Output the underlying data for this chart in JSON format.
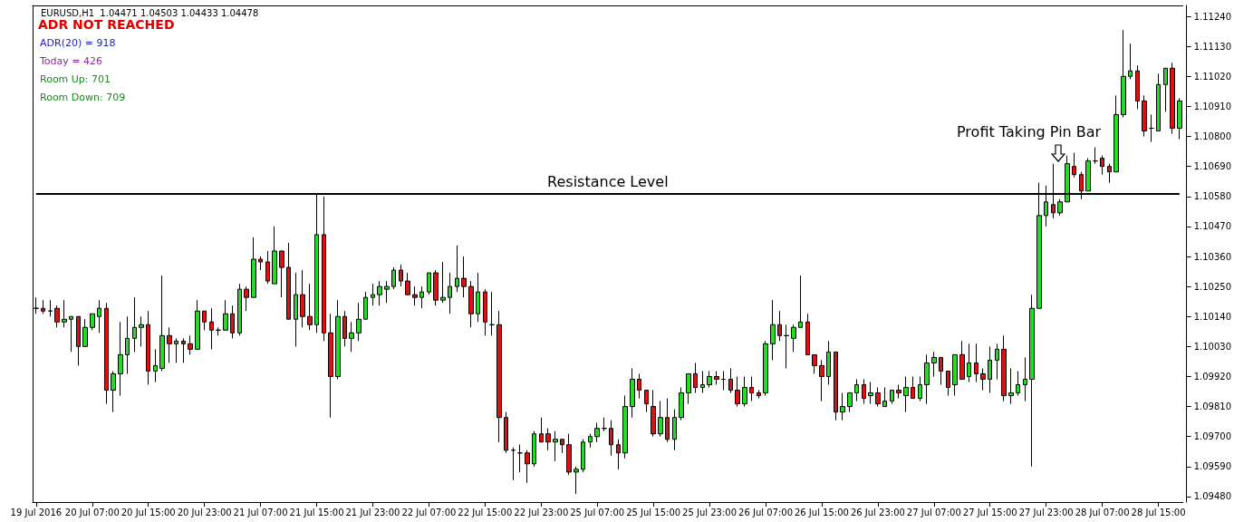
{
  "chart_data": {
    "type": "candlestick",
    "title": "EURUSD,H1  1.04471 1.04503 1.04433 1.04478",
    "annotations": [
      "ADR NOT REACHED",
      "ADR(20) = 918",
      "Today = 426",
      "Room Up: 701",
      "Room Down: 709",
      "Profit Taking Pin Bar"
    ],
    "categories": [
      "19 Jul 2016",
      null,
      null,
      null,
      null,
      null,
      null,
      null,
      "20 Jul 07:00",
      null,
      null,
      null,
      null,
      null,
      null,
      null,
      "20 Jul 15:00",
      null,
      null,
      null,
      null,
      null,
      null,
      null,
      "20 Jul 23:00",
      null,
      null,
      null,
      null,
      null,
      null,
      null,
      "21 Jul 07:00",
      null,
      null,
      null,
      null,
      null,
      null,
      null,
      "21 Jul 15:00",
      null,
      null,
      null,
      null,
      null,
      null,
      null,
      "21 Jul 23:00",
      null,
      null,
      null,
      null,
      null,
      null,
      null,
      "22 Jul 07:00",
      null,
      null,
      null,
      null,
      null,
      null,
      null,
      "22 Jul 15:00",
      null,
      null,
      null,
      null,
      null,
      null,
      null,
      "22 Jul 23:00",
      null,
      null,
      null,
      null,
      null,
      null,
      null,
      "25 Jul 07:00",
      null,
      null,
      null,
      null,
      null,
      null,
      null,
      "25 Jul 15:00",
      null,
      null,
      null,
      null,
      null,
      null,
      null,
      "25 Jul 23:00",
      null,
      null,
      null,
      null,
      null,
      null,
      null,
      "26 Jul 07:00",
      null,
      null,
      null,
      null,
      null,
      null,
      null,
      "26 Jul 15:00",
      null,
      null,
      null,
      null,
      null,
      null,
      null,
      "26 Jul 23:00",
      null,
      null,
      null,
      null,
      null,
      null,
      null,
      "27 Jul 07:00",
      null,
      null,
      null,
      null,
      null,
      null,
      null,
      "27 Jul 15:00",
      null,
      null,
      null,
      null,
      null,
      null,
      null,
      "27 Jul 23:00",
      null,
      null,
      null,
      null,
      null,
      null,
      null,
      "28 Jul 07:00",
      null,
      null,
      null,
      null,
      null,
      null,
      null,
      "28 Jul 15:00",
      null,
      null,
      null
    ],
    "ohlc": [
      [
        1.1017,
        1.1021,
        1.1015,
        1.1017
      ],
      [
        1.1017,
        1.102,
        1.1015,
        1.1016
      ],
      [
        1.1016,
        1.102,
        1.1014,
        1.1016
      ],
      [
        1.1017,
        1.1018,
        1.101,
        1.1012
      ],
      [
        1.1012,
        1.102,
        1.101,
        1.1013
      ],
      [
        1.1013,
        1.1014,
        1.1001,
        1.1014
      ],
      [
        1.1014,
        1.1014,
        1.0996,
        1.1003
      ],
      [
        1.1003,
        1.1013,
        1.1003,
        1.101
      ],
      [
        1.101,
        1.1015,
        1.1009,
        1.1015
      ],
      [
        1.1014,
        1.102,
        1.1008,
        1.1017
      ],
      [
        1.1017,
        1.1019,
        1.0982,
        1.0987
      ],
      [
        1.0987,
        1.0994,
        1.0979,
        1.0993
      ],
      [
        1.0993,
        1.1012,
        1.0985,
        1.1
      ],
      [
        1.1,
        1.1014,
        1.0993,
        1.1006
      ],
      [
        1.1006,
        1.1021,
        1.1001,
        1.101
      ],
      [
        1.101,
        1.1014,
        1.1003,
        1.1011
      ],
      [
        1.1011,
        1.1016,
        1.0989,
        1.0994
      ],
      [
        1.0994,
        1.1002,
        1.099,
        1.0996
      ],
      [
        1.0995,
        1.1029,
        1.0994,
        1.1007
      ],
      [
        1.1007,
        1.101,
        1.0997,
        1.1004
      ],
      [
        1.1004,
        1.1006,
        1.0997,
        1.1005
      ],
      [
        1.1005,
        1.1006,
        1.0997,
        1.1004
      ],
      [
        1.1004,
        1.1007,
        1.1,
        1.1002
      ],
      [
        1.1002,
        1.102,
        1.1002,
        1.1016
      ],
      [
        1.1016,
        1.1016,
        1.1009,
        1.1012
      ],
      [
        1.1012,
        1.1017,
        1.1002,
        1.1009
      ],
      [
        1.1009,
        1.101,
        1.1007,
        1.1009
      ],
      [
        1.1009,
        1.102,
        1.1009,
        1.1015
      ],
      [
        1.1015,
        1.1018,
        1.1006,
        1.1008
      ],
      [
        1.1008,
        1.1026,
        1.1007,
        1.1024
      ],
      [
        1.1024,
        1.1025,
        1.1016,
        1.1021
      ],
      [
        1.1021,
        1.1043,
        1.1021,
        1.1035
      ],
      [
        1.1035,
        1.1036,
        1.1031,
        1.1034
      ],
      [
        1.1034,
        1.1038,
        1.1026,
        1.1027
      ],
      [
        1.1026,
        1.1047,
        1.1026,
        1.1038
      ],
      [
        1.1038,
        1.1038,
        1.1021,
        1.1032
      ],
      [
        1.1032,
        1.1041,
        1.1013,
        1.1013
      ],
      [
        1.1013,
        1.103,
        1.1003,
        1.1022
      ],
      [
        1.1022,
        1.1031,
        1.101,
        1.1014
      ],
      [
        1.1014,
        1.1026,
        1.1009,
        1.1011
      ],
      [
        1.1011,
        1.1059,
        1.1008,
        1.1044
      ],
      [
        1.1044,
        1.1058,
        1.1005,
        1.1008
      ],
      [
        1.1008,
        1.1015,
        1.0977,
        1.0992
      ],
      [
        1.0992,
        1.102,
        1.0991,
        1.1014
      ],
      [
        1.1014,
        1.1016,
        1.1003,
        1.1006
      ],
      [
        1.1006,
        1.1012,
        1.1001,
        1.1008
      ],
      [
        1.1008,
        1.1019,
        1.1005,
        1.1013
      ],
      [
        1.1013,
        1.1023,
        1.1013,
        1.1021
      ],
      [
        1.1021,
        1.1026,
        1.1018,
        1.1022
      ],
      [
        1.1022,
        1.1027,
        1.1018,
        1.1025
      ],
      [
        1.1024,
        1.1027,
        1.1019,
        1.1025
      ],
      [
        1.1025,
        1.1032,
        1.1024,
        1.1031
      ],
      [
        1.1031,
        1.1033,
        1.1025,
        1.1027
      ],
      [
        1.1027,
        1.103,
        1.1022,
        1.1022
      ],
      [
        1.1022,
        1.1025,
        1.1018,
        1.1021
      ],
      [
        1.1021,
        1.1025,
        1.1017,
        1.1023
      ],
      [
        1.1023,
        1.103,
        1.1022,
        1.103
      ],
      [
        1.103,
        1.1031,
        1.1018,
        1.102
      ],
      [
        1.102,
        1.1034,
        1.1019,
        1.1021
      ],
      [
        1.1021,
        1.103,
        1.1015,
        1.1025
      ],
      [
        1.1025,
        1.104,
        1.1023,
        1.1028
      ],
      [
        1.1028,
        1.1036,
        1.1021,
        1.1025
      ],
      [
        1.1025,
        1.1027,
        1.101,
        1.1015
      ],
      [
        1.1015,
        1.103,
        1.1012,
        1.1023
      ],
      [
        1.1023,
        1.1024,
        1.1007,
        1.1012
      ],
      [
        1.1011,
        1.1023,
        1.1007,
        1.1011
      ],
      [
        1.1011,
        1.1016,
        1.0968,
        1.0977
      ],
      [
        1.0977,
        1.0979,
        1.0964,
        1.0965
      ],
      [
        1.0965,
        1.0966,
        1.0954,
        1.0965
      ],
      [
        1.0964,
        1.0967,
        1.0957,
        1.0964
      ],
      [
        1.0964,
        1.0965,
        1.0953,
        1.096
      ],
      [
        1.096,
        1.0972,
        1.0959,
        1.0971
      ],
      [
        1.0971,
        1.0977,
        1.0968,
        1.0968
      ],
      [
        1.0971,
        1.0973,
        1.0965,
        1.0968
      ],
      [
        1.0968,
        1.0972,
        1.0961,
        1.0969
      ],
      [
        1.0969,
        1.0969,
        1.0964,
        1.0967
      ],
      [
        1.0967,
        1.0971,
        1.0956,
        1.0957
      ],
      [
        1.0957,
        1.0959,
        1.0949,
        1.0958
      ],
      [
        1.0958,
        1.0969,
        1.0957,
        1.0968
      ],
      [
        1.0968,
        1.0971,
        1.0966,
        1.097
      ],
      [
        1.097,
        1.0975,
        1.0968,
        1.0973
      ],
      [
        1.0973,
        1.0977,
        1.0972,
        1.0973
      ],
      [
        1.0973,
        1.0976,
        1.0963,
        1.0967
      ],
      [
        1.0967,
        1.0969,
        1.0958,
        1.0964
      ],
      [
        1.0964,
        1.0985,
        1.0962,
        1.0981
      ],
      [
        1.0981,
        1.0995,
        1.0977,
        1.0991
      ],
      [
        1.0991,
        1.0993,
        1.0984,
        1.0987
      ],
      [
        1.0987,
        1.0987,
        1.0979,
        1.0982
      ],
      [
        1.0981,
        1.0987,
        1.097,
        1.0971
      ],
      [
        1.0971,
        1.0983,
        1.097,
        1.0977
      ],
      [
        1.0977,
        1.0984,
        1.0968,
        1.0969
      ],
      [
        1.0969,
        1.098,
        1.0965,
        1.0977
      ],
      [
        1.0977,
        1.0988,
        1.0976,
        1.0986
      ],
      [
        1.0986,
        1.0993,
        1.0982,
        1.0993
      ],
      [
        1.0993,
        1.0997,
        1.0986,
        1.0988
      ],
      [
        1.0988,
        1.0994,
        1.0986,
        1.0989
      ],
      [
        1.0989,
        1.0994,
        1.0988,
        1.0992
      ],
      [
        1.0992,
        1.0994,
        1.0989,
        1.0991
      ],
      [
        1.0991,
        1.0994,
        1.0987,
        1.0991
      ],
      [
        1.0991,
        1.0995,
        1.0986,
        1.0987
      ],
      [
        1.0987,
        1.0992,
        1.0981,
        1.0982
      ],
      [
        1.0982,
        1.0992,
        1.0981,
        1.0988
      ],
      [
        1.0988,
        1.0992,
        1.0983,
        1.0986
      ],
      [
        1.0986,
        1.0987,
        1.0984,
        1.0985
      ],
      [
        1.0986,
        1.1005,
        1.0985,
        1.1004
      ],
      [
        1.1004,
        1.102,
        1.0998,
        1.1011
      ],
      [
        1.1011,
        1.1016,
        1.1005,
        1.1007
      ],
      [
        1.1007,
        1.1011,
        1.0995,
        1.1007
      ],
      [
        1.1006,
        1.1011,
        1.1001,
        1.101
      ],
      [
        1.101,
        1.1029,
        1.101,
        1.1012
      ],
      [
        1.1012,
        1.1015,
        1.1,
        1.1
      ],
      [
        1.1,
        1.1,
        1.0993,
        1.0996
      ],
      [
        1.0996,
        1.0998,
        1.0983,
        1.0992
      ],
      [
        1.0992,
        1.1005,
        1.0989,
        1.1001
      ],
      [
        1.1001,
        1.1001,
        1.0976,
        1.0979
      ],
      [
        1.0979,
        1.0986,
        1.0976,
        1.0981
      ],
      [
        1.0981,
        1.0986,
        1.0979,
        1.0986
      ],
      [
        1.0986,
        1.0991,
        1.0983,
        1.0989
      ],
      [
        1.0989,
        1.0991,
        1.0982,
        1.0984
      ],
      [
        1.0985,
        1.099,
        1.0982,
        1.0986
      ],
      [
        1.0986,
        1.0988,
        1.0981,
        1.0982
      ],
      [
        1.0981,
        1.0988,
        1.0981,
        1.0983
      ],
      [
        1.0983,
        1.0987,
        1.0982,
        1.0987
      ],
      [
        1.0987,
        1.0989,
        1.0984,
        1.0986
      ],
      [
        1.0985,
        1.0992,
        1.0979,
        1.0988
      ],
      [
        1.0988,
        1.0992,
        1.0984,
        1.0984
      ],
      [
        1.0984,
        1.0992,
        1.0983,
        1.0989
      ],
      [
        1.0989,
        1.1,
        1.0982,
        1.0997
      ],
      [
        1.0997,
        1.1001,
        1.0992,
        1.0999
      ],
      [
        1.0999,
        1.0999,
        1.0989,
        1.0994
      ],
      [
        1.0994,
        1.0994,
        1.0985,
        1.0988
      ],
      [
        1.0989,
        1.1,
        1.0985,
        1.1
      ],
      [
        1.1,
        1.1005,
        1.0991,
        1.0991
      ],
      [
        1.0992,
        1.1004,
        1.099,
        1.0997
      ],
      [
        1.0997,
        1.1004,
        1.099,
        1.0993
      ],
      [
        1.0993,
        1.0995,
        1.0987,
        1.0991
      ],
      [
        1.0991,
        1.1003,
        1.0986,
        1.0998
      ],
      [
        1.0998,
        1.1004,
        1.0991,
        1.1002
      ],
      [
        1.1002,
        1.1007,
        1.0983,
        1.0985
      ],
      [
        1.0985,
        1.0995,
        1.0982,
        1.0986
      ],
      [
        1.0986,
        1.0994,
        1.0985,
        1.0989
      ],
      [
        1.0989,
        1.0999,
        1.0983,
        1.0991
      ],
      [
        1.0991,
        1.1022,
        1.0959,
        1.1017
      ],
      [
        1.1017,
        1.1063,
        1.1017,
        1.1051
      ],
      [
        1.1051,
        1.1062,
        1.1047,
        1.1056
      ],
      [
        1.1055,
        1.107,
        1.105,
        1.1052
      ],
      [
        1.1052,
        1.1057,
        1.1051,
        1.1056
      ],
      [
        1.1056,
        1.1073,
        1.1056,
        1.107
      ],
      [
        1.1069,
        1.1074,
        1.1065,
        1.1066
      ],
      [
        1.1066,
        1.1067,
        1.1057,
        1.106
      ],
      [
        1.106,
        1.1072,
        1.106,
        1.1071
      ],
      [
        1.1071,
        1.1076,
        1.107,
        1.1071
      ],
      [
        1.1072,
        1.1073,
        1.1066,
        1.1069
      ],
      [
        1.1069,
        1.107,
        1.1063,
        1.1067
      ],
      [
        1.1067,
        1.1095,
        1.1067,
        1.1088
      ],
      [
        1.1088,
        1.1119,
        1.1087,
        1.1102
      ],
      [
        1.1102,
        1.1114,
        1.1101,
        1.1104
      ],
      [
        1.1104,
        1.1106,
        1.109,
        1.1093
      ],
      [
        1.1093,
        1.1095,
        1.108,
        1.1082
      ],
      [
        1.1083,
        1.1088,
        1.1078,
        1.1083
      ],
      [
        1.1082,
        1.1103,
        1.1082,
        1.1099
      ],
      [
        1.1099,
        1.1105,
        1.1089,
        1.1105
      ],
      [
        1.1105,
        1.1107,
        1.1081,
        1.1083
      ],
      [
        1.1083,
        1.1094,
        1.1079,
        1.1093
      ]
    ],
    "ylim": [
      1.0946,
      1.1128
    ],
    "yticks": [
      {
        "value": 1.0948,
        "label": "1.09480"
      },
      {
        "value": 1.0959,
        "label": "1.09590"
      },
      {
        "value": 1.097,
        "label": "1.09700"
      },
      {
        "value": 1.0981,
        "label": "1.09810"
      },
      {
        "value": 1.0992,
        "label": "1.09920"
      },
      {
        "value": 1.1003,
        "label": "1.10030"
      },
      {
        "value": 1.1014,
        "label": "1.10140"
      },
      {
        "value": 1.1025,
        "label": "1.10250"
      },
      {
        "value": 1.1036,
        "label": "1.10360"
      },
      {
        "value": 1.1047,
        "label": "1.10470"
      },
      {
        "value": 1.1058,
        "label": "1.10580"
      },
      {
        "value": 1.1069,
        "label": "1.10690"
      },
      {
        "value": 1.108,
        "label": "1.10800"
      },
      {
        "value": 1.1091,
        "label": "1.10910"
      },
      {
        "value": 1.1102,
        "label": "1.11020"
      },
      {
        "value": 1.1113,
        "label": "1.11130"
      },
      {
        "value": 1.1124,
        "label": "1.11240"
      }
    ],
    "ref_lines": [
      {
        "axis": "y",
        "value": 1.1059,
        "label": "Resistance Level",
        "color": "#000000"
      }
    ]
  }
}
